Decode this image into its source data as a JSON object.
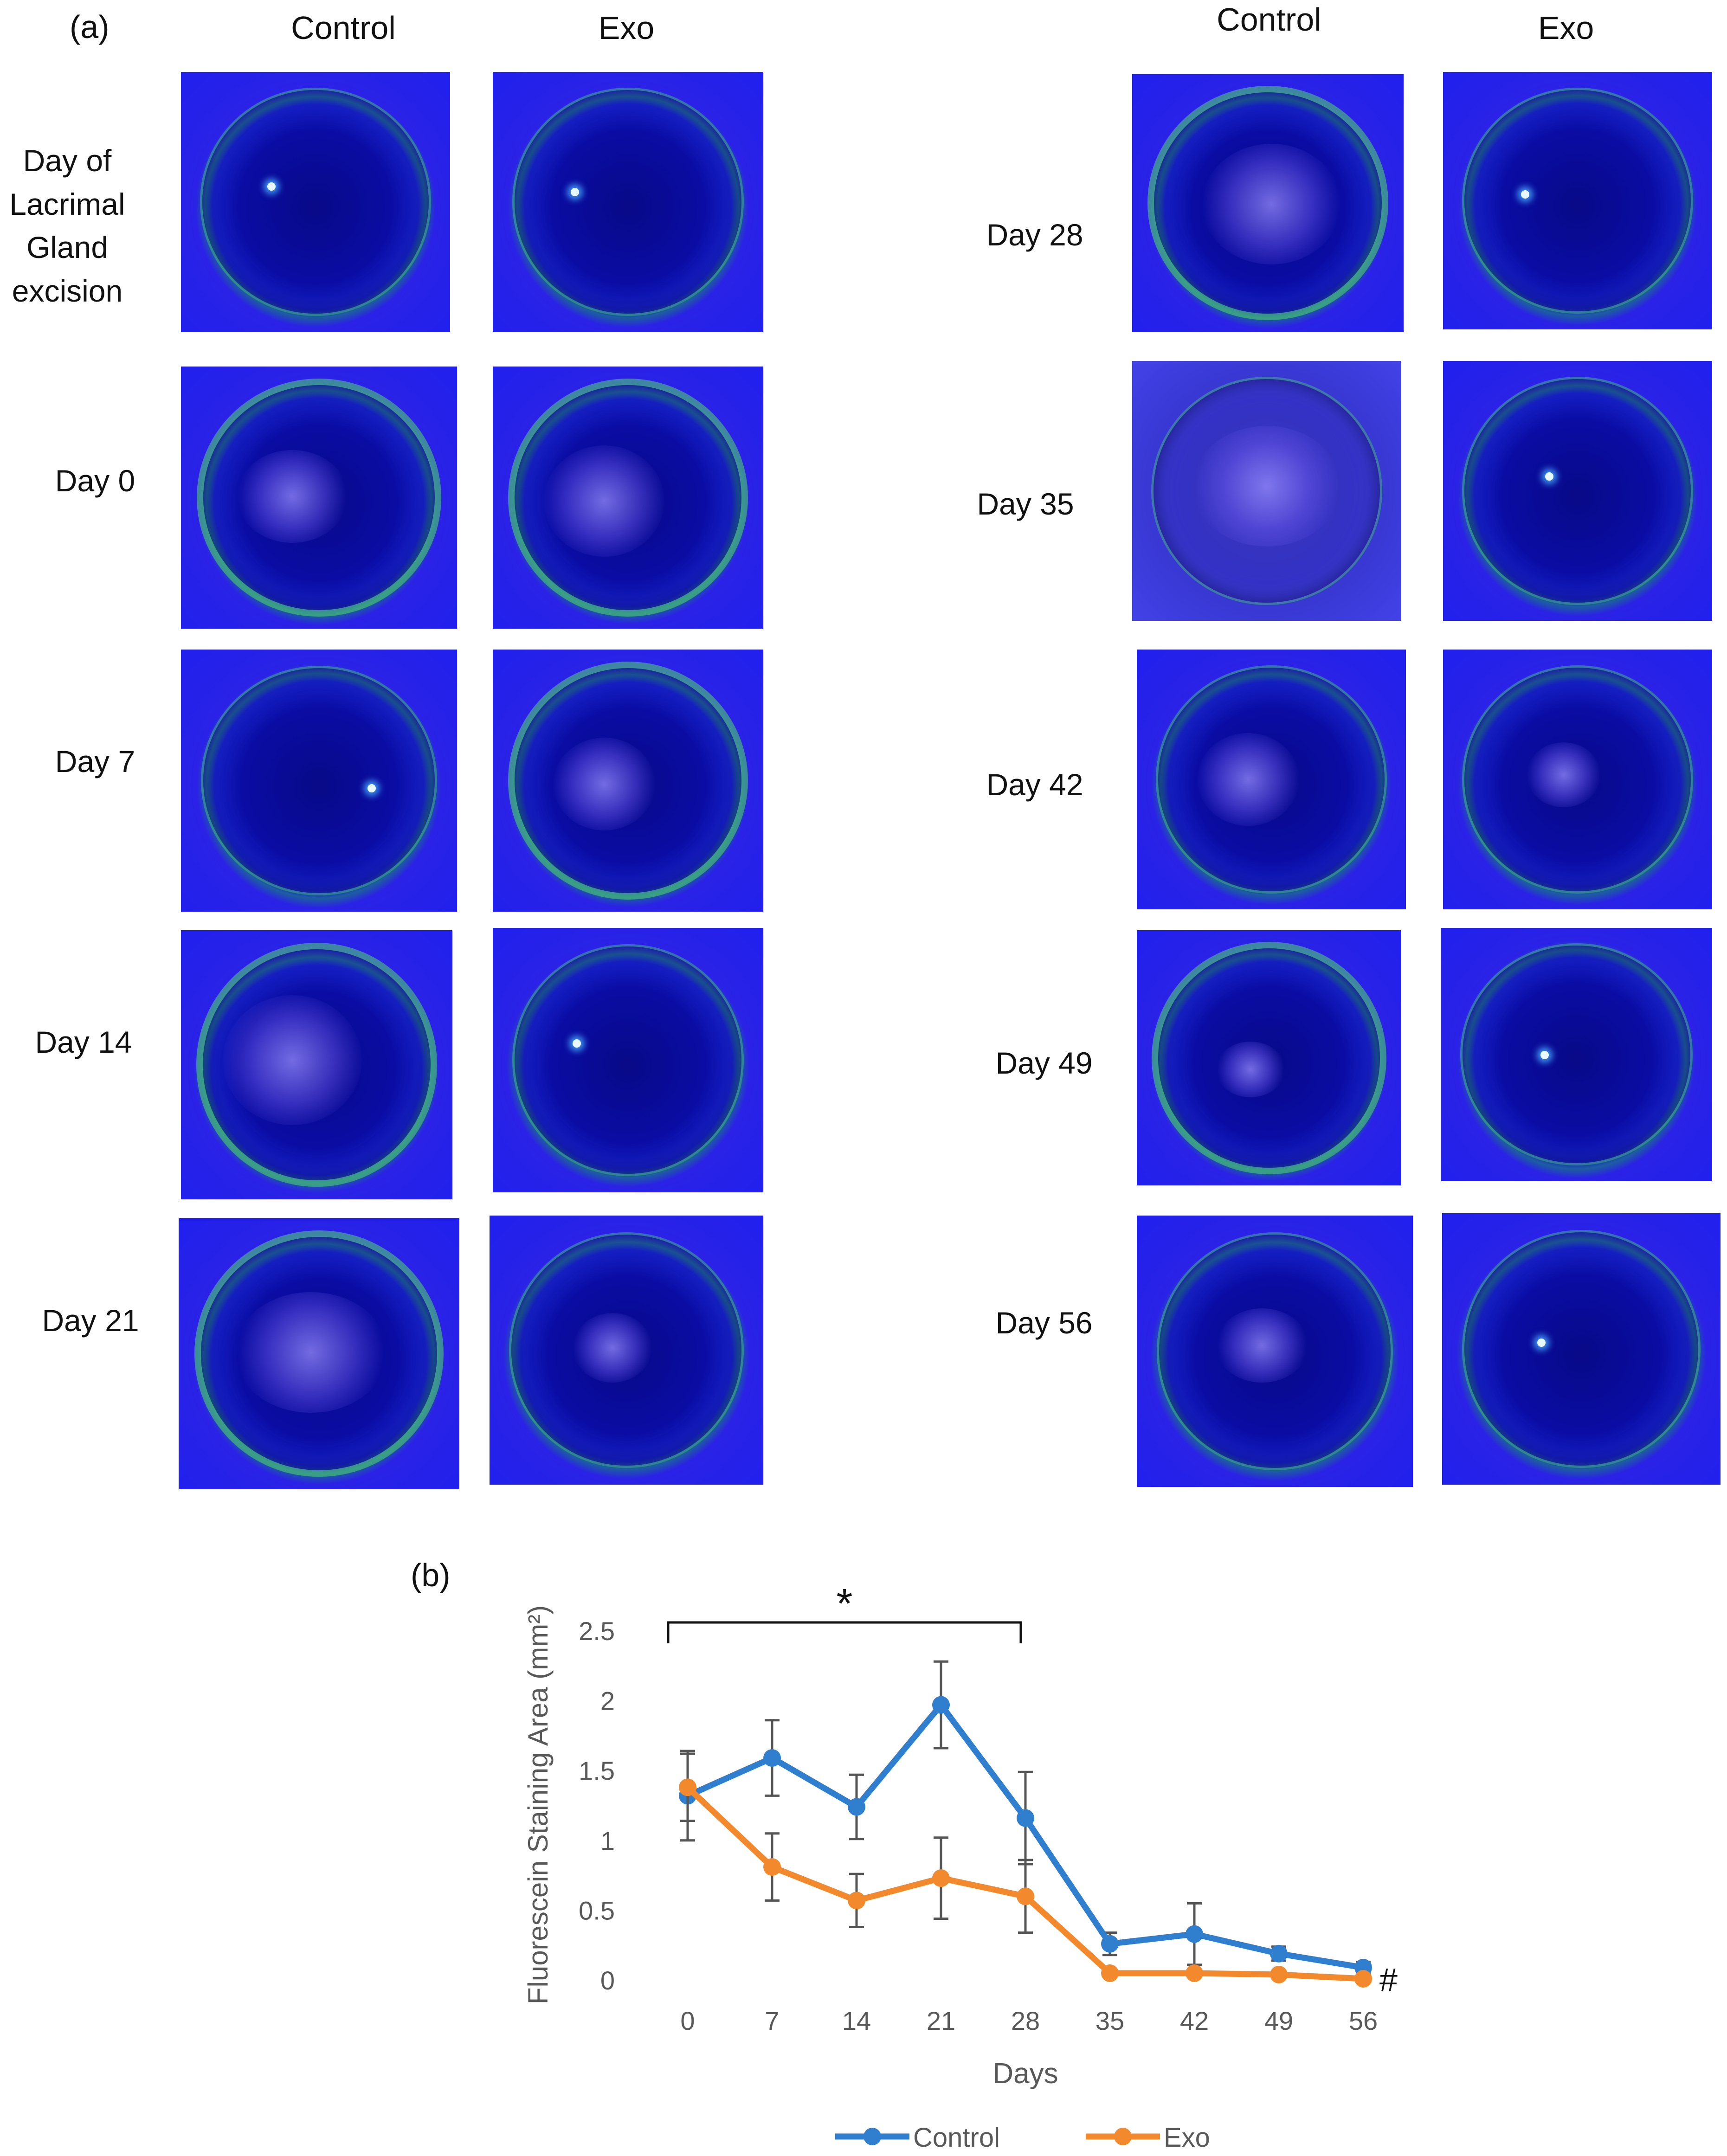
{
  "panel_a": {
    "label": "(a)",
    "columns": [
      "Control",
      "Exo",
      "Control",
      "Exo"
    ],
    "rows_left": [
      {
        "label": "Day of Lacrimal Gland excision"
      },
      {
        "label": "Day  0"
      },
      {
        "label": "Day  7"
      },
      {
        "label": "Day  14"
      },
      {
        "label": "Day  21"
      }
    ],
    "rows_right": [
      {
        "label": "Day  28"
      },
      {
        "label": "Day  35"
      },
      {
        "label": "Day  42"
      },
      {
        "label": "Day  49"
      },
      {
        "label": "Day  56"
      }
    ]
  },
  "panel_b": {
    "label": "(b)",
    "significance_mark": "*",
    "end_mark": "#"
  },
  "colors": {
    "control": "#2f7fce",
    "exo": "#f28a2d",
    "axis_text": "#595959",
    "error_bar": "#555555"
  },
  "chart_data": {
    "type": "line",
    "title": "",
    "xlabel": "Days",
    "ylabel": "Fluorescein Staining Area (mm²)",
    "categories": [
      "0",
      "7",
      "14",
      "21",
      "28",
      "35",
      "42",
      "49",
      "56"
    ],
    "ylim": [
      0,
      2.5
    ],
    "yticks": [
      "0",
      "0.5",
      "1",
      "1.5",
      "2",
      "2.5"
    ],
    "grid": false,
    "legend": "bottom",
    "series": [
      {
        "name": "Control",
        "values": [
          1.32,
          1.59,
          1.24,
          1.97,
          1.16,
          0.26,
          0.33,
          0.19,
          0.09
        ],
        "errors": [
          0.32,
          0.27,
          0.23,
          0.31,
          0.33,
          0.08,
          0.22,
          0.05,
          0.04
        ]
      },
      {
        "name": "Exo",
        "values": [
          1.38,
          0.81,
          0.57,
          0.73,
          0.6,
          0.05,
          0.05,
          0.04,
          0.01
        ],
        "errors": [
          0.24,
          0.24,
          0.19,
          0.29,
          0.26,
          0.02,
          0.02,
          0.02,
          0.01
        ]
      }
    ]
  }
}
